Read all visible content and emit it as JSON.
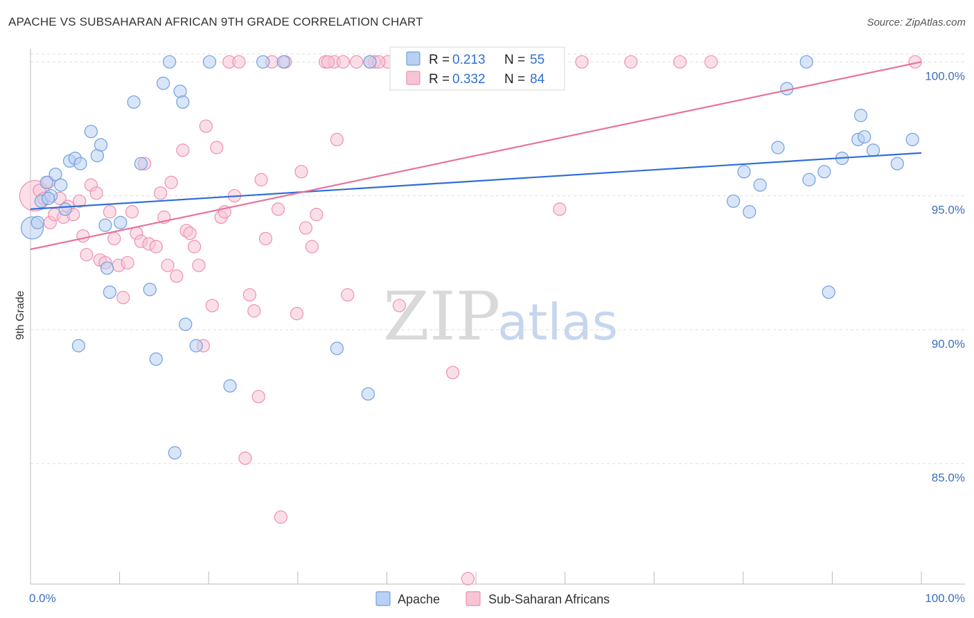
{
  "title": "APACHE VS SUBSAHARAN AFRICAN 9TH GRADE CORRELATION CHART",
  "source": "Source: ZipAtlas.com",
  "watermark": {
    "zip": "ZIP",
    "atlas": "atlas"
  },
  "colors": {
    "apache": "#6fa0e0",
    "apache_fill": "#b9d0f2",
    "apache_line": "#2f6fd6",
    "subsaharan": "#ee8fb0",
    "subsaharan_fill": "#f7c4d5",
    "subsaharan_line": "#e8729a",
    "grid": "#dddddd"
  },
  "legend": {
    "apache": {
      "r_label": "R =",
      "r_value": "0.213",
      "n_label": "N =",
      "n_value": "55"
    },
    "subsaharan": {
      "r_label": "R =",
      "r_value": "0.332",
      "n_label": "N =",
      "n_value": "84"
    }
  },
  "chart_data": {
    "type": "scatter",
    "title": "APACHE VS SUBSAHARAN AFRICAN 9TH GRADE CORRELATION CHART",
    "xlabel": "",
    "ylabel": "9th Grade",
    "xlim": [
      0,
      100
    ],
    "ylim": [
      80.5,
      100.5
    ],
    "x_tick_labels": [
      "0.0%",
      "100.0%"
    ],
    "y_ticks": [
      85,
      90,
      95,
      100
    ],
    "y_tick_labels": [
      "85.0%",
      "90.0%",
      "95.0%",
      "100.0%"
    ],
    "grid": true,
    "legend_position": "top-center",
    "series": [
      {
        "name": "Apache",
        "trend": {
          "x": [
            0,
            100
          ],
          "y": [
            94.5,
            96.6
          ]
        },
        "points": [
          {
            "x": 0.2,
            "y": 93.8,
            "s": 16
          },
          {
            "x": 0.8,
            "y": 94.0
          },
          {
            "x": 1.2,
            "y": 94.8
          },
          {
            "x": 1.8,
            "y": 95.5
          },
          {
            "x": 2.3,
            "y": 95.0
          },
          {
            "x": 2.8,
            "y": 95.8
          },
          {
            "x": 3.4,
            "y": 95.4
          },
          {
            "x": 3.9,
            "y": 94.5
          },
          {
            "x": 4.4,
            "y": 96.3
          },
          {
            "x": 5.0,
            "y": 96.4
          },
          {
            "x": 5.6,
            "y": 96.2
          },
          {
            "x": 6.8,
            "y": 97.4
          },
          {
            "x": 7.5,
            "y": 96.5
          },
          {
            "x": 7.9,
            "y": 96.9
          },
          {
            "x": 8.4,
            "y": 93.9
          },
          {
            "x": 8.9,
            "y": 91.4
          },
          {
            "x": 10.1,
            "y": 94.0
          },
          {
            "x": 11.6,
            "y": 98.5
          },
          {
            "x": 12.4,
            "y": 96.2
          },
          {
            "x": 13.4,
            "y": 91.5
          },
          {
            "x": 14.1,
            "y": 88.9
          },
          {
            "x": 14.9,
            "y": 99.2
          },
          {
            "x": 15.6,
            "y": 100.0
          },
          {
            "x": 16.2,
            "y": 85.4
          },
          {
            "x": 16.8,
            "y": 98.9
          },
          {
            "x": 17.1,
            "y": 98.5
          },
          {
            "x": 17.4,
            "y": 90.2
          },
          {
            "x": 18.6,
            "y": 89.4
          },
          {
            "x": 20.1,
            "y": 100.0
          },
          {
            "x": 22.4,
            "y": 87.9
          },
          {
            "x": 26.1,
            "y": 100.0
          },
          {
            "x": 28.4,
            "y": 100.0
          },
          {
            "x": 34.4,
            "y": 89.3
          },
          {
            "x": 37.9,
            "y": 87.6
          },
          {
            "x": 38.1,
            "y": 100.0
          },
          {
            "x": 5.4,
            "y": 89.4
          },
          {
            "x": 8.6,
            "y": 92.3
          },
          {
            "x": 80.1,
            "y": 95.9
          },
          {
            "x": 81.9,
            "y": 95.4
          },
          {
            "x": 78.9,
            "y": 94.8
          },
          {
            "x": 80.7,
            "y": 94.4
          },
          {
            "x": 84.9,
            "y": 99.0
          },
          {
            "x": 83.9,
            "y": 96.8
          },
          {
            "x": 87.1,
            "y": 100.0
          },
          {
            "x": 87.4,
            "y": 95.6
          },
          {
            "x": 89.1,
            "y": 95.9
          },
          {
            "x": 89.6,
            "y": 91.4
          },
          {
            "x": 91.1,
            "y": 96.4
          },
          {
            "x": 92.9,
            "y": 97.1
          },
          {
            "x": 93.2,
            "y": 98.0
          },
          {
            "x": 93.6,
            "y": 97.2
          },
          {
            "x": 94.6,
            "y": 96.7
          },
          {
            "x": 97.3,
            "y": 96.2
          },
          {
            "x": 99.0,
            "y": 97.1
          },
          {
            "x": 2.0,
            "y": 94.9
          }
        ]
      },
      {
        "name": "Sub-Saharan Africans",
        "trend": {
          "x": [
            0,
            100
          ],
          "y": [
            93.0,
            100.0
          ]
        },
        "points": [
          {
            "x": 0.5,
            "y": 95.0,
            "s": 22
          },
          {
            "x": 1.0,
            "y": 95.2
          },
          {
            "x": 1.5,
            "y": 94.9
          },
          {
            "x": 2.2,
            "y": 94.0
          },
          {
            "x": 2.7,
            "y": 94.3
          },
          {
            "x": 3.3,
            "y": 94.9
          },
          {
            "x": 3.7,
            "y": 94.2
          },
          {
            "x": 4.2,
            "y": 94.6
          },
          {
            "x": 4.8,
            "y": 94.3
          },
          {
            "x": 5.5,
            "y": 94.8
          },
          {
            "x": 5.9,
            "y": 93.5
          },
          {
            "x": 6.3,
            "y": 92.8
          },
          {
            "x": 6.8,
            "y": 95.4
          },
          {
            "x": 7.4,
            "y": 95.1
          },
          {
            "x": 7.8,
            "y": 92.6
          },
          {
            "x": 8.4,
            "y": 92.5
          },
          {
            "x": 8.9,
            "y": 94.4
          },
          {
            "x": 9.4,
            "y": 93.4
          },
          {
            "x": 9.9,
            "y": 92.4
          },
          {
            "x": 10.4,
            "y": 91.2
          },
          {
            "x": 10.9,
            "y": 92.5
          },
          {
            "x": 11.4,
            "y": 94.4
          },
          {
            "x": 11.9,
            "y": 93.6
          },
          {
            "x": 12.4,
            "y": 93.3
          },
          {
            "x": 12.8,
            "y": 96.2
          },
          {
            "x": 13.3,
            "y": 93.2
          },
          {
            "x": 14.1,
            "y": 93.1
          },
          {
            "x": 14.6,
            "y": 95.1
          },
          {
            "x": 15.0,
            "y": 94.2
          },
          {
            "x": 15.4,
            "y": 92.4
          },
          {
            "x": 15.8,
            "y": 95.5
          },
          {
            "x": 16.4,
            "y": 92.0
          },
          {
            "x": 17.1,
            "y": 96.7
          },
          {
            "x": 17.5,
            "y": 93.7
          },
          {
            "x": 17.9,
            "y": 93.6
          },
          {
            "x": 18.4,
            "y": 93.1
          },
          {
            "x": 18.9,
            "y": 92.4
          },
          {
            "x": 19.4,
            "y": 89.4
          },
          {
            "x": 19.7,
            "y": 97.6
          },
          {
            "x": 20.4,
            "y": 90.9
          },
          {
            "x": 20.9,
            "y": 96.8
          },
          {
            "x": 21.4,
            "y": 94.2
          },
          {
            "x": 21.8,
            "y": 94.4
          },
          {
            "x": 22.3,
            "y": 100.0
          },
          {
            "x": 22.9,
            "y": 95.0
          },
          {
            "x": 23.4,
            "y": 100.0
          },
          {
            "x": 24.1,
            "y": 85.2
          },
          {
            "x": 24.6,
            "y": 91.3
          },
          {
            "x": 25.1,
            "y": 90.7
          },
          {
            "x": 25.6,
            "y": 87.5
          },
          {
            "x": 25.9,
            "y": 95.6
          },
          {
            "x": 26.4,
            "y": 93.4
          },
          {
            "x": 27.1,
            "y": 100.0
          },
          {
            "x": 27.8,
            "y": 94.5
          },
          {
            "x": 28.1,
            "y": 83.0
          },
          {
            "x": 28.6,
            "y": 100.0
          },
          {
            "x": 29.9,
            "y": 90.6
          },
          {
            "x": 30.4,
            "y": 95.9
          },
          {
            "x": 30.9,
            "y": 93.8
          },
          {
            "x": 31.6,
            "y": 93.1
          },
          {
            "x": 32.1,
            "y": 94.3
          },
          {
            "x": 33.1,
            "y": 100.0
          },
          {
            "x": 34.1,
            "y": 100.0
          },
          {
            "x": 34.4,
            "y": 97.1
          },
          {
            "x": 35.1,
            "y": 100.0
          },
          {
            "x": 35.6,
            "y": 91.3
          },
          {
            "x": 36.6,
            "y": 100.0
          },
          {
            "x": 38.6,
            "y": 100.0
          },
          {
            "x": 40.1,
            "y": 100.0
          },
          {
            "x": 38.1,
            "y": 100.0
          },
          {
            "x": 39.1,
            "y": 100.0
          },
          {
            "x": 41.4,
            "y": 90.9
          },
          {
            "x": 42.4,
            "y": 100.0
          },
          {
            "x": 44.9,
            "y": 100.0
          },
          {
            "x": 47.4,
            "y": 88.4
          },
          {
            "x": 49.1,
            "y": 80.7
          },
          {
            "x": 59.4,
            "y": 94.5
          },
          {
            "x": 61.9,
            "y": 100.0
          },
          {
            "x": 67.4,
            "y": 100.0
          },
          {
            "x": 72.9,
            "y": 100.0
          },
          {
            "x": 76.4,
            "y": 100.0
          },
          {
            "x": 99.3,
            "y": 100.0
          },
          {
            "x": 33.4,
            "y": 100.0
          },
          {
            "x": 2.0,
            "y": 95.5
          }
        ]
      }
    ]
  }
}
